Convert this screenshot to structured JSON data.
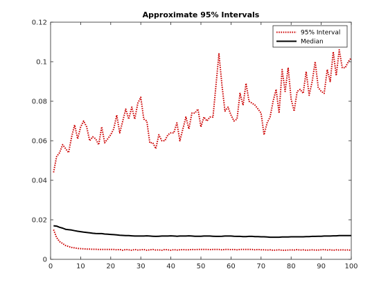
{
  "chart_data": {
    "type": "line",
    "title": "Approximate 95% Intervals",
    "xlabel": "",
    "ylabel": "",
    "xlim": [
      0,
      100
    ],
    "ylim": [
      0,
      0.12
    ],
    "xticks": [
      0,
      10,
      20,
      30,
      40,
      50,
      60,
      70,
      80,
      90,
      100
    ],
    "xtick_labels": [
      "0",
      "10",
      "20",
      "30",
      "40",
      "50",
      "60",
      "70",
      "80",
      "90",
      "100"
    ],
    "yticks": [
      0,
      0.02,
      0.04,
      0.06,
      0.08,
      0.1,
      0.12
    ],
    "ytick_labels": [
      "0",
      "0.02",
      "0.04",
      "0.06",
      "0.08",
      "0.1",
      "0.12"
    ],
    "grid": false,
    "legend_position": "top-right",
    "legend": [
      "95% Interval",
      "Median"
    ],
    "series": [
      {
        "name": "95% Interval",
        "role": "upper",
        "color": "#cc0000",
        "style": "dotted",
        "x": [
          1,
          2,
          3,
          4,
          5,
          6,
          7,
          8,
          9,
          10,
          11,
          12,
          13,
          14,
          15,
          16,
          17,
          18,
          19,
          20,
          21,
          22,
          23,
          24,
          25,
          26,
          27,
          28,
          29,
          30,
          31,
          32,
          33,
          34,
          35,
          36,
          37,
          38,
          39,
          40,
          41,
          42,
          43,
          44,
          45,
          46,
          47,
          48,
          49,
          50,
          51,
          52,
          53,
          54,
          55,
          56,
          57,
          58,
          59,
          60,
          61,
          62,
          63,
          64,
          65,
          66,
          67,
          68,
          69,
          70,
          71,
          72,
          73,
          74,
          75,
          76,
          77,
          78,
          79,
          80,
          81,
          82,
          83,
          84,
          85,
          86,
          87,
          88,
          89,
          90,
          91,
          92,
          93,
          94,
          95,
          96,
          97,
          98,
          99,
          100
        ],
        "values": [
          0.044,
          0.052,
          0.054,
          0.058,
          0.056,
          0.054,
          0.062,
          0.068,
          0.061,
          0.067,
          0.07,
          0.067,
          0.06,
          0.062,
          0.061,
          0.058,
          0.067,
          0.059,
          0.061,
          0.063,
          0.066,
          0.073,
          0.064,
          0.07,
          0.076,
          0.071,
          0.077,
          0.071,
          0.079,
          0.082,
          0.071,
          0.07,
          0.059,
          0.059,
          0.056,
          0.063,
          0.06,
          0.06,
          0.063,
          0.064,
          0.064,
          0.069,
          0.06,
          0.066,
          0.072,
          0.066,
          0.074,
          0.074,
          0.076,
          0.067,
          0.072,
          0.07,
          0.072,
          0.072,
          0.088,
          0.104,
          0.088,
          0.075,
          0.077,
          0.073,
          0.07,
          0.071,
          0.084,
          0.078,
          0.089,
          0.08,
          0.079,
          0.078,
          0.076,
          0.074,
          0.063,
          0.069,
          0.072,
          0.08,
          0.086,
          0.074,
          0.096,
          0.085,
          0.097,
          0.081,
          0.075,
          0.085,
          0.086,
          0.084,
          0.095,
          0.083,
          0.09,
          0.1,
          0.087,
          0.085,
          0.084,
          0.096,
          0.09,
          0.105,
          0.093,
          0.106,
          0.097,
          0.097,
          0.1,
          0.102
        ]
      },
      {
        "name": "95% Interval",
        "role": "lower",
        "color": "#cc0000",
        "style": "dotted",
        "x": [
          1,
          2,
          3,
          4,
          5,
          6,
          7,
          8,
          9,
          10,
          11,
          12,
          13,
          14,
          15,
          16,
          17,
          18,
          19,
          20,
          21,
          22,
          23,
          24,
          25,
          26,
          27,
          28,
          29,
          30,
          31,
          32,
          33,
          34,
          35,
          36,
          37,
          38,
          39,
          40,
          41,
          42,
          43,
          44,
          45,
          46,
          47,
          48,
          49,
          50,
          51,
          52,
          53,
          54,
          55,
          56,
          57,
          58,
          59,
          60,
          61,
          62,
          63,
          64,
          65,
          66,
          67,
          68,
          69,
          70,
          71,
          72,
          73,
          74,
          75,
          76,
          77,
          78,
          79,
          80,
          81,
          82,
          83,
          84,
          85,
          86,
          87,
          88,
          89,
          90,
          91,
          92,
          93,
          94,
          95,
          96,
          97,
          98,
          99,
          100
        ],
        "values": [
          0.015,
          0.011,
          0.009,
          0.008,
          0.007,
          0.0065,
          0.006,
          0.0058,
          0.0055,
          0.0054,
          0.0053,
          0.0052,
          0.0052,
          0.0051,
          0.0051,
          0.005,
          0.005,
          0.005,
          0.005,
          0.005,
          0.005,
          0.0048,
          0.005,
          0.0046,
          0.005,
          0.0048,
          0.0046,
          0.005,
          0.0047,
          0.0048,
          0.005,
          0.0046,
          0.0048,
          0.005,
          0.0047,
          0.0048,
          0.0046,
          0.005,
          0.0048,
          0.0046,
          0.0049,
          0.0047,
          0.0048,
          0.0049,
          0.0048,
          0.0048,
          0.005,
          0.0049,
          0.005,
          0.005,
          0.005,
          0.005,
          0.0049,
          0.005,
          0.005,
          0.005,
          0.0048,
          0.005,
          0.005,
          0.0049,
          0.005,
          0.0048,
          0.005,
          0.005,
          0.005,
          0.005,
          0.005,
          0.0048,
          0.005,
          0.0048,
          0.0048,
          0.0047,
          0.0048,
          0.0046,
          0.0047,
          0.0048,
          0.0046,
          0.0046,
          0.0047,
          0.0048,
          0.0047,
          0.0049,
          0.0047,
          0.0048,
          0.0046,
          0.0047,
          0.0048,
          0.0047,
          0.0047,
          0.0048,
          0.0049,
          0.0047,
          0.0048,
          0.0046,
          0.0048,
          0.0047,
          0.0048,
          0.0047,
          0.0048,
          0.0045
        ]
      },
      {
        "name": "Median",
        "color": "#000000",
        "style": "solid",
        "x": [
          1,
          2,
          3,
          4,
          5,
          6,
          7,
          8,
          9,
          10,
          11,
          12,
          13,
          14,
          15,
          16,
          17,
          18,
          19,
          20,
          21,
          22,
          23,
          24,
          25,
          26,
          27,
          28,
          29,
          30,
          31,
          32,
          33,
          34,
          35,
          36,
          37,
          38,
          39,
          40,
          41,
          42,
          43,
          44,
          45,
          46,
          47,
          48,
          49,
          50,
          51,
          52,
          53,
          54,
          55,
          56,
          57,
          58,
          59,
          60,
          61,
          62,
          63,
          64,
          65,
          66,
          67,
          68,
          69,
          70,
          71,
          72,
          73,
          74,
          75,
          76,
          77,
          78,
          79,
          80,
          81,
          82,
          83,
          84,
          85,
          86,
          87,
          88,
          89,
          90,
          91,
          92,
          93,
          94,
          95,
          96,
          97,
          98,
          99,
          100
        ],
        "values": [
          0.017,
          0.0168,
          0.0162,
          0.0158,
          0.0152,
          0.015,
          0.0148,
          0.0145,
          0.0142,
          0.014,
          0.0138,
          0.0136,
          0.0134,
          0.0132,
          0.0131,
          0.013,
          0.013,
          0.0128,
          0.0127,
          0.0126,
          0.0125,
          0.0124,
          0.0122,
          0.0121,
          0.012,
          0.012,
          0.0119,
          0.0118,
          0.0118,
          0.0118,
          0.0118,
          0.0119,
          0.0118,
          0.0117,
          0.0116,
          0.0117,
          0.0118,
          0.0118,
          0.0118,
          0.0119,
          0.0118,
          0.0117,
          0.0118,
          0.0118,
          0.0118,
          0.0119,
          0.0118,
          0.0117,
          0.0117,
          0.0117,
          0.0118,
          0.0118,
          0.0118,
          0.0117,
          0.0116,
          0.0116,
          0.0117,
          0.0118,
          0.0118,
          0.0118,
          0.0117,
          0.0116,
          0.0116,
          0.0115,
          0.0115,
          0.0116,
          0.0116,
          0.0115,
          0.0115,
          0.0114,
          0.0114,
          0.0113,
          0.0112,
          0.0112,
          0.0112,
          0.0112,
          0.0113,
          0.0113,
          0.0113,
          0.0114,
          0.0114,
          0.0114,
          0.0114,
          0.0114,
          0.0115,
          0.0115,
          0.0116,
          0.0116,
          0.0117,
          0.0117,
          0.0118,
          0.0118,
          0.0118,
          0.0119,
          0.0119,
          0.012,
          0.012,
          0.012,
          0.012,
          0.012
        ]
      }
    ]
  }
}
